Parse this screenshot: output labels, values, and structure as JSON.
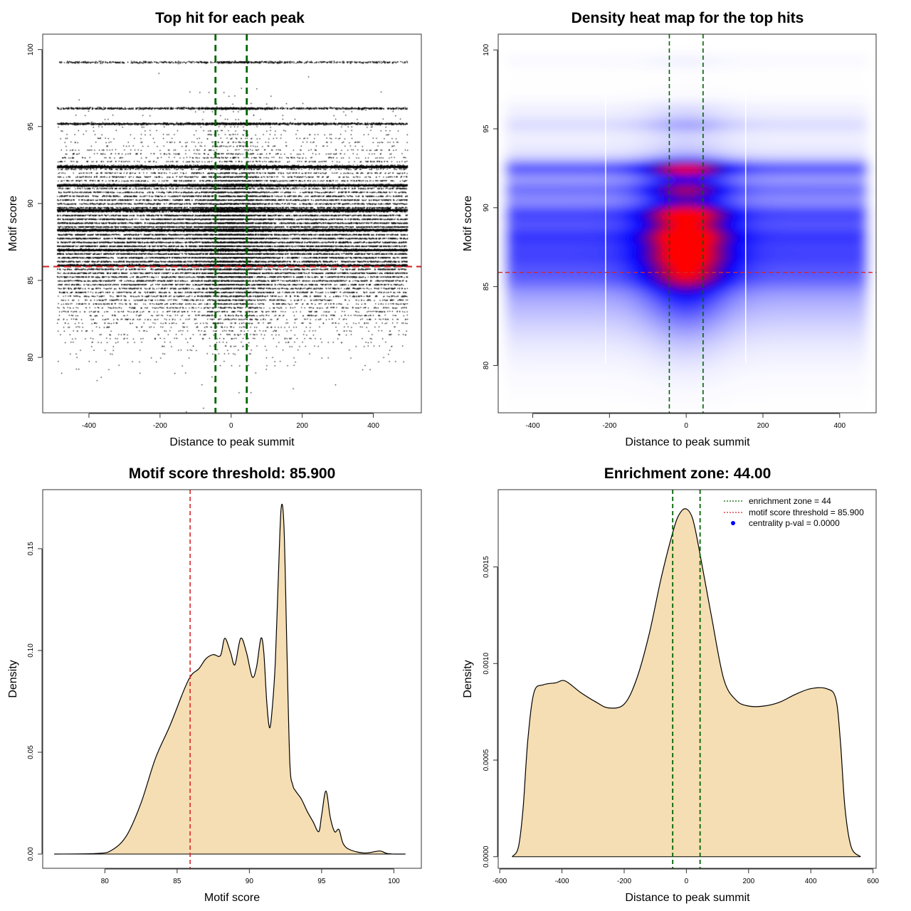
{
  "colors": {
    "threshold_line": "#d62728",
    "zone_line": "#006400",
    "density_fill": "#f5deb3",
    "heat_low": "#ffffff",
    "heat_mid": "#0000ff",
    "heat_high": "#ff0000",
    "centrality_point": "#0000ff"
  },
  "chart_data": [
    {
      "type": "scatter",
      "title": "Top hit for each peak",
      "xlabel": "Distance to peak summit",
      "ylabel": "Motif score",
      "xlim": [
        -530,
        535
      ],
      "ylim": [
        76.4,
        101.0
      ],
      "xticks": [
        -400,
        -200,
        0,
        200,
        400
      ],
      "xtick_labels": [
        "-400",
        "-200",
        "0",
        "200",
        "400"
      ],
      "yticks": [
        80,
        85,
        90,
        95,
        100
      ],
      "ytick_labels": [
        "80",
        "85",
        "90",
        "95",
        "100"
      ],
      "x_range": [
        -490,
        495
      ],
      "score_levels": [
        {
          "score": 92.4,
          "weight": 5.0
        },
        {
          "score": 91.2,
          "weight": 3.0
        },
        {
          "score": 89.6,
          "weight": 3.2
        },
        {
          "score": 88.3,
          "weight": 3.0
        },
        {
          "score": 87.0,
          "weight": 2.6
        },
        {
          "score": 86.0,
          "weight": 2.2
        },
        {
          "score": 96.2,
          "weight": 0.8
        },
        {
          "score": 95.2,
          "weight": 1.2
        },
        {
          "score": 99.2,
          "weight": 0.5
        }
      ],
      "threshold_score": 85.9,
      "enrichment_zone": [
        -44,
        44
      ],
      "n_points": 60000
    },
    {
      "type": "heatmap",
      "title": "Density heat map for the top hits",
      "xlabel": "Distance to peak summit",
      "ylabel": "Motif score",
      "xlim": [
        -490,
        495
      ],
      "ylim": [
        77.0,
        101.0
      ],
      "xticks": [
        -400,
        -200,
        0,
        200,
        400
      ],
      "xtick_labels": [
        "-400",
        "-200",
        "0",
        "200",
        "400"
      ],
      "yticks": [
        80,
        85,
        90,
        95,
        100
      ],
      "ytick_labels": [
        "80",
        "85",
        "90",
        "95",
        "100"
      ],
      "peak": {
        "x": 0,
        "y": 92.5
      },
      "threshold_score": 85.9,
      "enrichment_zone": [
        -44,
        44
      ]
    },
    {
      "type": "area",
      "title": "Motif score threshold: 85.900",
      "xlabel": "Motif score",
      "ylabel": "Density",
      "xlim": [
        75.7,
        101.9
      ],
      "ylim": [
        -0.007,
        0.179
      ],
      "xticks": [
        80,
        85,
        90,
        95,
        100
      ],
      "xtick_labels": [
        "80",
        "85",
        "90",
        "95",
        "100"
      ],
      "yticks": [
        0.0,
        0.05,
        0.1,
        0.15
      ],
      "ytick_labels": [
        "0.00",
        "0.05",
        "0.10",
        "0.15"
      ],
      "x": [
        76.5,
        79.5,
        80.5,
        81.5,
        82.5,
        83.5,
        84.5,
        85.5,
        86.0,
        86.5,
        87.0,
        87.5,
        88.0,
        88.3,
        88.7,
        89.0,
        89.4,
        89.8,
        90.2,
        90.5,
        90.8,
        91.0,
        91.2,
        91.4,
        91.6,
        91.8,
        92.0,
        92.2,
        92.4,
        92.6,
        92.8,
        93.0,
        93.2,
        93.6,
        94.0,
        94.4,
        94.8,
        95.0,
        95.3,
        95.6,
        95.9,
        96.2,
        96.5,
        97.0,
        98.0,
        99.0,
        99.5,
        100.0,
        100.8
      ],
      "y": [
        0.0,
        0.0003,
        0.002,
        0.009,
        0.025,
        0.047,
        0.063,
        0.081,
        0.088,
        0.091,
        0.096,
        0.098,
        0.0975,
        0.106,
        0.099,
        0.093,
        0.106,
        0.099,
        0.087,
        0.092,
        0.106,
        0.099,
        0.075,
        0.062,
        0.073,
        0.095,
        0.135,
        0.17,
        0.16,
        0.1,
        0.045,
        0.034,
        0.031,
        0.027,
        0.021,
        0.016,
        0.011,
        0.019,
        0.031,
        0.018,
        0.011,
        0.012,
        0.005,
        0.002,
        0.0005,
        0.0015,
        0.0003,
        0.0,
        0.0
      ],
      "threshold_score": 85.9
    },
    {
      "type": "area",
      "title": "Enrichment zone: 44.00",
      "xlabel": "Distance to peak summit",
      "ylabel": "Density",
      "xlim": [
        -605,
        610
      ],
      "ylim": [
        -6e-05,
        0.0019
      ],
      "xticks": [
        -600,
        -400,
        -200,
        0,
        200,
        400,
        600
      ],
      "xtick_labels": [
        "-600",
        "-400",
        "-200",
        "0",
        "200",
        "400",
        "600"
      ],
      "yticks": [
        0.0,
        0.0005,
        0.001,
        0.0015
      ],
      "ytick_labels": [
        "0.0000",
        "0.0005",
        "0.0010",
        "0.0015"
      ],
      "x": [
        -560,
        -540,
        -525,
        -510,
        -490,
        -460,
        -420,
        -390,
        -340,
        -290,
        -250,
        -200,
        -160,
        -120,
        -80,
        -40,
        -20,
        0,
        20,
        40,
        80,
        120,
        160,
        200,
        250,
        300,
        350,
        400,
        450,
        480,
        495,
        510,
        530,
        560
      ],
      "y": [
        0.0,
        5e-05,
        0.00025,
        0.0006,
        0.00085,
        0.00089,
        0.0009,
        0.00091,
        0.00085,
        0.0008,
        0.00077,
        0.00079,
        0.00092,
        0.00115,
        0.00145,
        0.0017,
        0.00178,
        0.0018,
        0.00175,
        0.0016,
        0.00125,
        0.00092,
        0.00081,
        0.00078,
        0.00078,
        0.0008,
        0.00084,
        0.00087,
        0.00087,
        0.00082,
        0.0006,
        0.00025,
        5e-05,
        0.0
      ],
      "enrichment_zone": [
        -44,
        44
      ],
      "legend": [
        {
          "label": "enrichment zone = 44",
          "style": "dotted-green"
        },
        {
          "label": "motif score threshold = 85.900",
          "style": "dotted-red"
        },
        {
          "label": "centrality p-val = 0.0000",
          "style": "blue-point"
        }
      ],
      "legend_position": "top-right"
    }
  ]
}
